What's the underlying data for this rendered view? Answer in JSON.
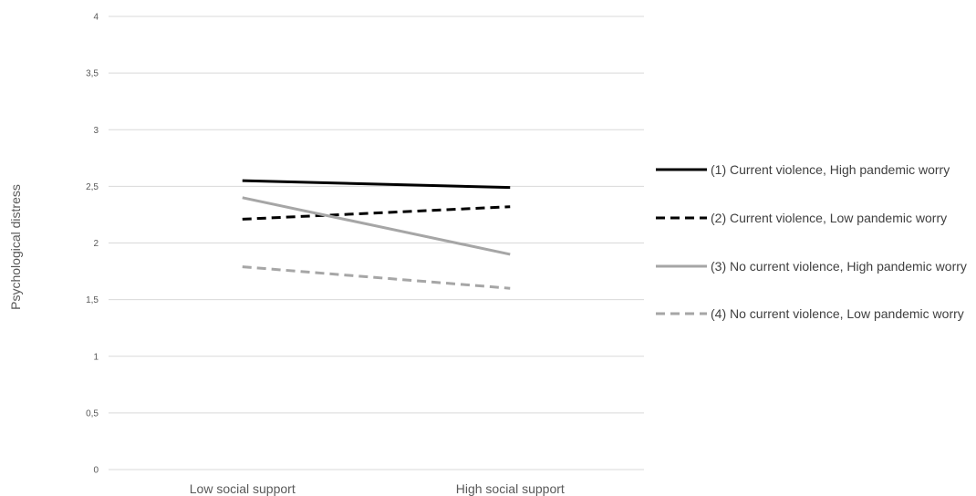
{
  "chart_data": {
    "type": "line",
    "title": "",
    "xlabel": "",
    "ylabel": "Psychological distress",
    "categories": [
      "Low social support",
      "High social support"
    ],
    "ylim": [
      0,
      4
    ],
    "yticks": [
      "0",
      "0,5",
      "1",
      "1,5",
      "2",
      "2,5",
      "3",
      "3,5",
      "4"
    ],
    "grid": true,
    "legend_position": "right",
    "series": [
      {
        "name": "(1) Current violence, High pandemic worry",
        "values": [
          2.55,
          2.49
        ],
        "color": "#000000",
        "dash": "solid"
      },
      {
        "name": "(2) Current violence, Low pandemic worry",
        "values": [
          2.21,
          2.32
        ],
        "color": "#000000",
        "dash": "dashed"
      },
      {
        "name": "(3) No current violence, High pandemic worry",
        "values": [
          2.4,
          1.9
        ],
        "color": "#a6a6a6",
        "dash": "solid"
      },
      {
        "name": "(4) No current violence, Low pandemic worry",
        "values": [
          1.79,
          1.6
        ],
        "color": "#a6a6a6",
        "dash": "dashed"
      }
    ]
  }
}
